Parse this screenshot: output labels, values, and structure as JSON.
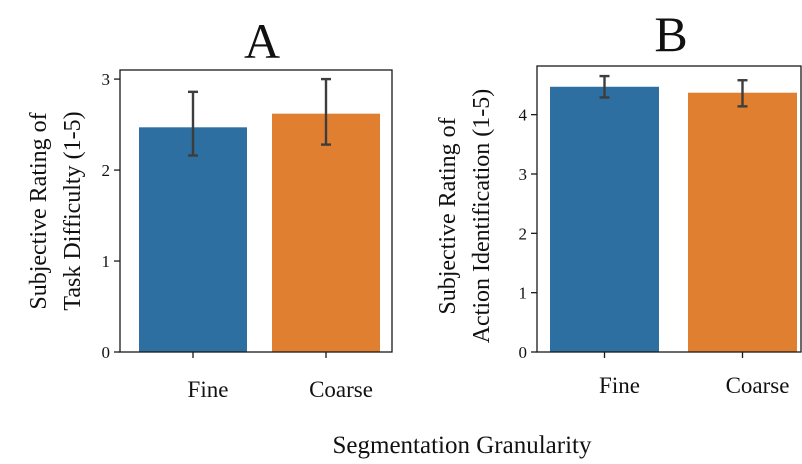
{
  "xlabel": "Segmentation Granularity",
  "colors": {
    "fine": "#2e6fa1",
    "coarse": "#e07f2f"
  },
  "chart_data": [
    {
      "type": "bar",
      "panel": "A",
      "ylabel_lines": [
        "Subjective Rating of",
        "Task Difficulty (1-5)"
      ],
      "categories": [
        "Fine",
        "Coarse"
      ],
      "values": [
        2.47,
        2.62
      ],
      "error_low": [
        2.16,
        2.28
      ],
      "error_high": [
        2.86,
        3.0
      ],
      "ylim": [
        0,
        3.1
      ],
      "yticks": [
        0,
        1,
        2,
        3
      ],
      "grid": false
    },
    {
      "type": "bar",
      "panel": "B",
      "ylabel_lines": [
        "Subjective Rating of",
        "Action Identification (1-5)"
      ],
      "categories": [
        "Fine",
        "Coarse"
      ],
      "values": [
        4.47,
        4.37
      ],
      "error_low": [
        4.29,
        4.14
      ],
      "error_high": [
        4.65,
        4.58
      ],
      "ylim": [
        0,
        4.82
      ],
      "yticks": [
        0,
        1,
        2,
        3,
        4
      ],
      "grid": false
    }
  ]
}
